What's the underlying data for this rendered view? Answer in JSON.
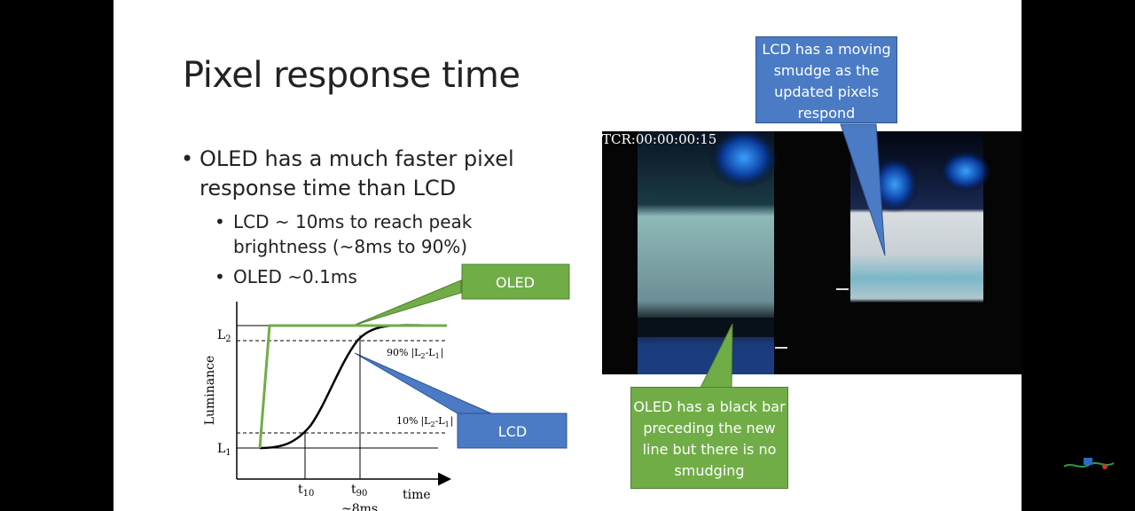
{
  "slide": {
    "title": "Pixel response time",
    "bullets": [
      {
        "level": 1,
        "text": "OLED has a much faster pixel response time than LCD"
      },
      {
        "level": 2,
        "text": "LCD ~ 10ms to reach peak brightness (~8ms to 90%)"
      },
      {
        "level": 2,
        "text": "OLED ~0.1ms"
      }
    ]
  },
  "diagram": {
    "callouts": {
      "oled": "OLED",
      "lcd": "LCD"
    },
    "axis": {
      "ylabel": "Luminance",
      "xlabel": "time",
      "l2": "L",
      "l2_sub": "2",
      "l1": "L",
      "l1_sub": "1",
      "t10": "t",
      "t10_sub": "10",
      "t90": "t",
      "t90_sub": "90",
      "ms_label": "~8ms"
    },
    "threshold_90": {
      "pct": "90%",
      "expr_a": "|L",
      "sub_a": "2",
      "expr_b": "-L",
      "sub_b": "1",
      "expr_c": "|"
    },
    "threshold_10": {
      "pct": "10%",
      "expr_a": "|L",
      "sub_a": "2",
      "expr_b": "-L",
      "sub_b": "1",
      "expr_c": "|"
    },
    "colors": {
      "oled_curve": "#70ad47",
      "lcd_curve": "#000000",
      "green": "#70ad47",
      "blue": "#4a7bc4"
    }
  },
  "video": {
    "timecode": "TCR:00:00:00:15",
    "callout_lcd": "LCD has a moving smudge as the updated pixels respond",
    "callout_oled": "OLED has a black bar preceding the new line but there is no smudging"
  }
}
